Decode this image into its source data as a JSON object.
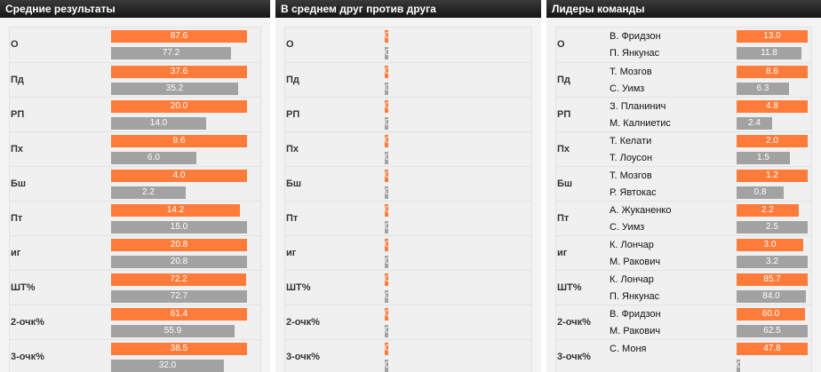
{
  "panels": {
    "averages": {
      "title": "Средние результаты",
      "rows": [
        {
          "label": "О",
          "a": 87.6,
          "b": 77.2,
          "a_text": "87.6",
          "b_text": "77.2"
        },
        {
          "label": "Пд",
          "a": 37.6,
          "b": 35.2,
          "a_text": "37.6",
          "b_text": "35.2"
        },
        {
          "label": "РП",
          "a": 20.0,
          "b": 14.0,
          "a_text": "20.0",
          "b_text": "14.0"
        },
        {
          "label": "Пх",
          "a": 9.6,
          "b": 6.0,
          "a_text": "9.6",
          "b_text": "6.0"
        },
        {
          "label": "Бш",
          "a": 4.0,
          "b": 2.2,
          "a_text": "4.0",
          "b_text": "2.2"
        },
        {
          "label": "Пт",
          "a": 14.2,
          "b": 15.0,
          "a_text": "14.2",
          "b_text": "15.0"
        },
        {
          "label": "иг",
          "a": 20.8,
          "b": 20.8,
          "a_text": "20.8",
          "b_text": "20.8"
        },
        {
          "label": "ШТ%",
          "a": 72.2,
          "b": 72.7,
          "a_text": "72.2",
          "b_text": "72.7"
        },
        {
          "label": "2-очк%",
          "a": 61.4,
          "b": 55.9,
          "a_text": "61.4",
          "b_text": "55.9"
        },
        {
          "label": "3-очк%",
          "a": 38.5,
          "b": 32.0,
          "a_text": "38.5",
          "b_text": "32.0"
        }
      ]
    },
    "head_to_head": {
      "title": "В среднем друг против друга",
      "rows": [
        {
          "label": "О",
          "a": 0,
          "b": 0,
          "a_text": "0",
          "b_text": "0"
        },
        {
          "label": "Пд",
          "a": 0,
          "b": 0,
          "a_text": "0",
          "b_text": "0"
        },
        {
          "label": "РП",
          "a": 0,
          "b": 0,
          "a_text": "0",
          "b_text": "0"
        },
        {
          "label": "Пх",
          "a": 0,
          "b": 0,
          "a_text": "0",
          "b_text": "0"
        },
        {
          "label": "Бш",
          "a": 0,
          "b": 0,
          "a_text": "0",
          "b_text": "0"
        },
        {
          "label": "Пт",
          "a": 0,
          "b": 0,
          "a_text": "0",
          "b_text": "0"
        },
        {
          "label": "иг",
          "a": 0,
          "b": 0,
          "a_text": "0",
          "b_text": "0"
        },
        {
          "label": "ШТ%",
          "a": 0,
          "b": 0,
          "a_text": "0",
          "b_text": "0"
        },
        {
          "label": "2-очк%",
          "a": 0,
          "b": 0,
          "a_text": "0",
          "b_text": "0"
        },
        {
          "label": "3-очк%",
          "a": 0,
          "b": 0,
          "a_text": "0",
          "b_text": "0"
        }
      ]
    },
    "leaders": {
      "title": "Лидеры команды",
      "rows": [
        {
          "label": "О",
          "a_player": "В. Фридзон",
          "b_player": "П. Янкунас",
          "a": 13.0,
          "b": 11.8,
          "a_text": "13.0",
          "b_text": "11.8"
        },
        {
          "label": "Пд",
          "a_player": "Т. Мозгов",
          "b_player": "С. Уимз",
          "a": 8.6,
          "b": 6.3,
          "a_text": "8.6",
          "b_text": "6.3"
        },
        {
          "label": "РП",
          "a_player": "З. Планинич",
          "b_player": "М. Калниетис",
          "a": 4.8,
          "b": 2.4,
          "a_text": "4.8",
          "b_text": "2.4"
        },
        {
          "label": "Пх",
          "a_player": "Т. Келати",
          "b_player": "Т. Лоусон",
          "a": 2.0,
          "b": 1.5,
          "a_text": "2.0",
          "b_text": "1.5"
        },
        {
          "label": "Бш",
          "a_player": "Т. Мозгов",
          "b_player": "Р. Явтокас",
          "a": 1.2,
          "b": 0.8,
          "a_text": "1.2",
          "b_text": "0.8"
        },
        {
          "label": "Пт",
          "a_player": "А. Жуканенко",
          "b_player": "С. Уимз",
          "a": 2.2,
          "b": 2.5,
          "a_text": "2.2",
          "b_text": "2.5"
        },
        {
          "label": "иг",
          "a_player": "К. Лончар",
          "b_player": "М. Ракович",
          "a": 3.0,
          "b": 3.2,
          "a_text": "3.0",
          "b_text": "3.2"
        },
        {
          "label": "ШТ%",
          "a_player": "К. Лончар",
          "b_player": "П. Янкунас",
          "a": 85.7,
          "b": 84.0,
          "a_text": "85.7",
          "b_text": "84.0"
        },
        {
          "label": "2-очк%",
          "a_player": "В. Фридзон",
          "b_player": "М. Ракович",
          "a": 60.0,
          "b": 62.5,
          "a_text": "60.0",
          "b_text": "62.5"
        },
        {
          "label": "3-очк%",
          "a_player": "С. Моня",
          "b_player": "",
          "a": 47.8,
          "b": 0,
          "a_text": "47.8",
          "b_text": "0.0"
        }
      ]
    }
  },
  "colors": {
    "team_a": "#ff7b39",
    "team_b": "#a2a2a2"
  }
}
